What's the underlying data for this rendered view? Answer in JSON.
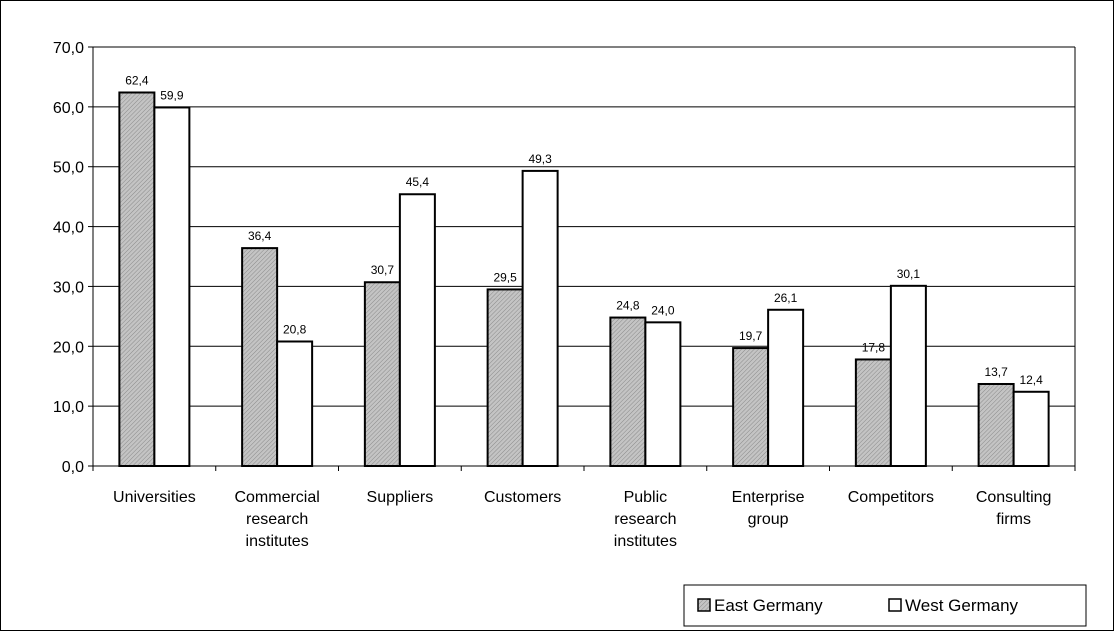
{
  "chart_data": {
    "type": "bar",
    "categories": [
      [
        "Universities"
      ],
      [
        "Commercial",
        "research",
        "institutes"
      ],
      [
        "Suppliers"
      ],
      [
        "Customers"
      ],
      [
        "Public",
        "research",
        "institutes"
      ],
      [
        "Enterprise",
        "group"
      ],
      [
        "Competitors"
      ],
      [
        "Consulting",
        "firms"
      ]
    ],
    "series": [
      {
        "name": "East Germany",
        "values": [
          62.4,
          36.4,
          30.7,
          29.5,
          24.8,
          19.7,
          17.8,
          13.7
        ],
        "labels": [
          "62,4",
          "36,4",
          "30,7",
          "29,5",
          "24,8",
          "19,7",
          "17,8",
          "13,7"
        ],
        "fill": "hatched-gray"
      },
      {
        "name": "West Germany",
        "values": [
          59.9,
          20.8,
          45.4,
          49.3,
          24.0,
          26.1,
          30.1,
          12.4
        ],
        "labels": [
          "59,9",
          "20,8",
          "45,4",
          "49,3",
          "24,0",
          "26,1",
          "30,1",
          "12,4"
        ],
        "fill": "#ffffff"
      }
    ],
    "yticks": [
      0,
      10,
      20,
      30,
      40,
      50,
      60,
      70
    ],
    "ytick_labels": [
      "0,0",
      "10,0",
      "20,0",
      "30,0",
      "40,0",
      "50,0",
      "60,0",
      "70,0"
    ],
    "ylim": [
      0,
      70
    ],
    "grid": true,
    "legend": "bottom-right",
    "colors": {
      "east_fill": "#c0c0c0",
      "west_fill": "#ffffff",
      "stroke": "#000000"
    }
  }
}
